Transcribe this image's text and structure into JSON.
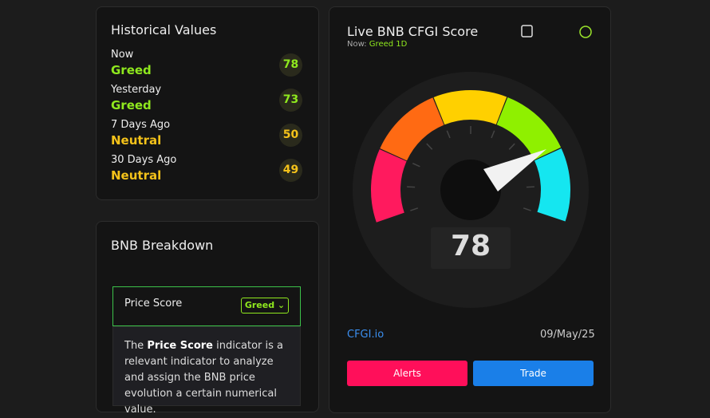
{
  "historical": {
    "title": "Historical Values",
    "items": [
      {
        "label": "Now",
        "status": "Greed",
        "value": 78
      },
      {
        "label": "Yesterday",
        "status": "Greed",
        "value": 73
      },
      {
        "label": "7 Days Ago",
        "status": "Neutral",
        "value": 50
      },
      {
        "label": "30 Days Ago",
        "status": "Neutral",
        "value": 49
      }
    ]
  },
  "breakdown": {
    "title": "BNB Breakdown",
    "price_score": {
      "label": "Price Score",
      "badge": "Greed"
    },
    "description": {
      "before": "The",
      "bold": "Price Score",
      "after": "indicator is a relevant indicator to analyze and assign the BNB price evolution a certain numerical value."
    }
  },
  "live": {
    "title": "Live BNB CFGI Score",
    "now_label": "Now:",
    "now_status": "Greed",
    "timeframe": "1D",
    "score": 78,
    "source": "CFGI.io",
    "date": "09/May/25"
  },
  "buttons": {
    "alerts": "Alerts",
    "trade": "Trade"
  }
}
